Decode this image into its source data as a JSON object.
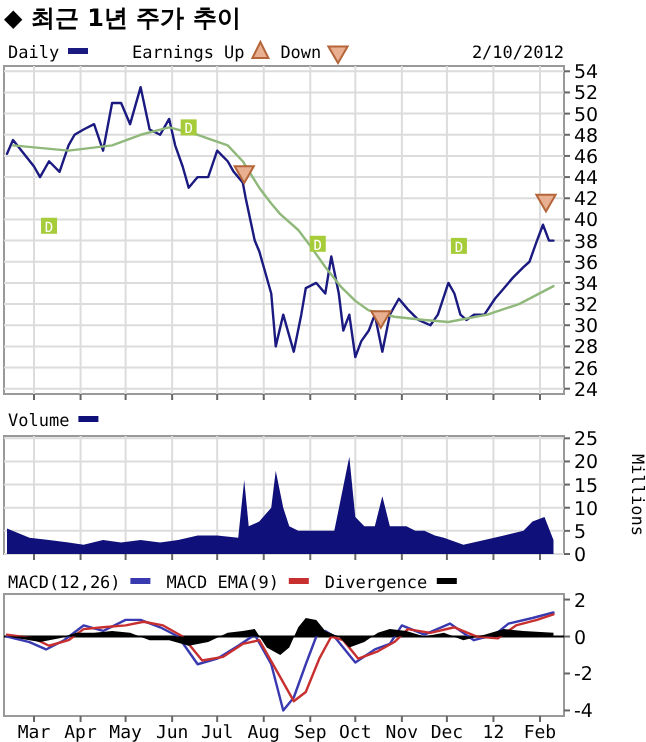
{
  "chart_data": [
    {
      "type": "line",
      "title": "◆ 최근 1년 주가 추이",
      "legend": "top left",
      "grid": true,
      "tick_labels": "y",
      "xticks": [
        {
          "value": "2011-03-01",
          "label": null
        },
        {
          "value": "2011-04-01",
          "label": null
        },
        {
          "value": "2011-05-01",
          "label": null
        },
        {
          "value": "2011-06-01",
          "label": null
        },
        {
          "value": "2011-07-01",
          "label": null
        },
        {
          "value": "2011-08-01",
          "label": null
        },
        {
          "value": "2011-09-01",
          "label": null
        },
        {
          "value": "2011-10-01",
          "label": null
        },
        {
          "value": "2011-11-01",
          "label": null
        },
        {
          "value": "2011-12-01",
          "label": null
        },
        {
          "value": "2012-01-01",
          "label": null
        },
        {
          "value": "2012-02-01",
          "label": null
        }
      ],
      "annotations": [
        "2/10/2012",
        "Earnings Up",
        {
          "text": "D",
          "x": "2011-03-11",
          "y": 39.4
        },
        {
          "text": "D",
          "x": "2011-06-12",
          "y": 48.7
        },
        {
          "text": "D",
          "x": "2011-09-06",
          "y": 37.7
        },
        {
          "text": "D",
          "x": "2011-12-09",
          "y": 37.5
        }
      ],
      "xlim": [
        "2011-02-09",
        "2012-02-17"
      ],
      "ylim": [
        23.5,
        54.5
      ],
      "yticks": [
        24,
        26,
        28,
        30,
        32,
        34,
        36,
        38,
        40,
        42,
        44,
        46,
        48,
        50,
        52,
        54
      ],
      "series": [
        {
          "name": "Daily",
          "color": "#1a1a80",
          "x": [
            "2011-02-11",
            "2011-02-15",
            "2011-03-01",
            "2011-03-05",
            "2011-03-11",
            "2011-03-18",
            "2011-03-24",
            "2011-03-28",
            "2011-04-03",
            "2011-04-10",
            "2011-04-16",
            "2011-04-22",
            "2011-04-28",
            "2011-05-04",
            "2011-05-11",
            "2011-05-17",
            "2011-05-24",
            "2011-05-30",
            "2011-06-03",
            "2011-06-08",
            "2011-06-12",
            "2011-06-18",
            "2011-06-25",
            "2011-07-01",
            "2011-07-08",
            "2011-07-12",
            "2011-07-18",
            "2011-07-20",
            "2011-07-26",
            "2011-07-29",
            "2011-08-06",
            "2011-08-09",
            "2011-08-14",
            "2011-08-18",
            "2011-08-21",
            "2011-08-26",
            "2011-08-29",
            "2011-09-05",
            "2011-09-11",
            "2011-09-15",
            "2011-09-20",
            "2011-09-23",
            "2011-09-27",
            "2011-10-01",
            "2011-10-05",
            "2011-10-10",
            "2011-10-14",
            "2011-10-19",
            "2011-10-24",
            "2011-10-30",
            "2011-11-05",
            "2011-11-12",
            "2011-11-20",
            "2011-11-25",
            "2011-12-02",
            "2011-12-06",
            "2011-12-10",
            "2011-12-14",
            "2011-12-19",
            "2011-12-26",
            "2012-01-02",
            "2012-01-08",
            "2012-01-14",
            "2012-01-21",
            "2012-01-25",
            "2012-01-30",
            "2012-02-03",
            "2012-02-07",
            "2012-02-10"
          ],
          "values": [
            46.2,
            47.5,
            45,
            44,
            45.5,
            44.5,
            47,
            48,
            48.5,
            49,
            46.5,
            51,
            51,
            49,
            52.5,
            48.5,
            48,
            49.5,
            47,
            45,
            43,
            44,
            44,
            46.5,
            45.5,
            44.5,
            43.5,
            42,
            38,
            37,
            33,
            28,
            31,
            29,
            27.5,
            31,
            33.5,
            34,
            33,
            36.5,
            33,
            29.5,
            31,
            27,
            28.5,
            29.5,
            31,
            27.5,
            31,
            32.5,
            31.5,
            30.5,
            30,
            31,
            34,
            33,
            31,
            30.5,
            31,
            31,
            32.5,
            33.5,
            34.5,
            35.5,
            36,
            38,
            39.5,
            38,
            38
          ]
        },
        {
          "color": "#8fb87a",
          "x": [
            "2011-02-15",
            "2011-03-24",
            "2011-04-22",
            "2011-05-11",
            "2011-05-30",
            "2011-06-18",
            "2011-07-08",
            "2011-07-18",
            "2011-07-29",
            "2011-08-06",
            "2011-08-12",
            "2011-08-24",
            "2011-09-01",
            "2011-09-11",
            "2011-09-21",
            "2011-10-01",
            "2011-10-10",
            "2011-10-27",
            "2011-11-16",
            "2011-12-02",
            "2011-12-28",
            "2012-01-18",
            "2012-02-10"
          ],
          "values": [
            47,
            46.5,
            47,
            48,
            48.7,
            48,
            47,
            45.5,
            43,
            41.5,
            40.5,
            39,
            37.5,
            35.5,
            33.7,
            32.3,
            31.4,
            30.8,
            30.5,
            30.3,
            31,
            32,
            33.7
          ]
        },
        {
          "name": "Down",
          "type": "scatter",
          "marker": "triangle",
          "color": "#b5653a",
          "x": [
            "2011-07-19",
            "2011-10-18",
            "2012-02-05"
          ],
          "values": [
            44.5,
            30.8,
            41.8
          ]
        }
      ]
    },
    {
      "type": "area",
      "legend": "top left",
      "grid": true,
      "tick_labels": "y",
      "ylabel": "Millions",
      "xlim": [
        "2011-02-09",
        "2012-02-17"
      ],
      "xticks": [
        {
          "value": "2011-03-01",
          "label": null
        },
        {
          "value": "2011-04-01",
          "label": null
        },
        {
          "value": "2011-05-01",
          "label": null
        },
        {
          "value": "2011-06-01",
          "label": null
        },
        {
          "value": "2011-07-01",
          "label": null
        },
        {
          "value": "2011-08-01",
          "label": null
        },
        {
          "value": "2011-09-01",
          "label": null
        },
        {
          "value": "2011-10-01",
          "label": null
        },
        {
          "value": "2011-11-01",
          "label": null
        },
        {
          "value": "2011-12-01",
          "label": null
        },
        {
          "value": "2012-01-01",
          "label": null
        },
        {
          "value": "2012-02-01",
          "label": null
        }
      ],
      "ylim": [
        0,
        25.5
      ],
      "yticks": [
        0,
        5,
        10,
        15,
        20,
        25
      ],
      "series": [
        {
          "name": "Volume",
          "color": "#10107a",
          "x": [
            "2011-02-11",
            "2011-02-26",
            "2011-03-11",
            "2011-03-24",
            "2011-04-03",
            "2011-04-16",
            "2011-04-28",
            "2011-05-11",
            "2011-05-24",
            "2011-06-05",
            "2011-06-18",
            "2011-07-01",
            "2011-07-15",
            "2011-07-19",
            "2011-07-22",
            "2011-07-29",
            "2011-08-06",
            "2011-08-09",
            "2011-08-14",
            "2011-08-18",
            "2011-08-24",
            "2011-09-05",
            "2011-09-17",
            "2011-09-27",
            "2011-10-01",
            "2011-10-07",
            "2011-10-14",
            "2011-10-19",
            "2011-10-24",
            "2011-11-04",
            "2011-11-10",
            "2011-11-16",
            "2011-11-23",
            "2011-11-29",
            "2011-12-12",
            "2011-12-26",
            "2012-01-08",
            "2012-01-21",
            "2012-01-27",
            "2012-02-04",
            "2012-02-10"
          ],
          "values": [
            5.5,
            3.5,
            3,
            2.5,
            2,
            3,
            2.5,
            3,
            2.5,
            3,
            4,
            4,
            3.5,
            16,
            6,
            7,
            10,
            18,
            10,
            6,
            5,
            5,
            5,
            21,
            8,
            6,
            6,
            12.5,
            6,
            6,
            5,
            5,
            4,
            3.5,
            2,
            3,
            4,
            5,
            7,
            8,
            3
          ]
        }
      ]
    },
    {
      "type": "line",
      "legend": "top left",
      "grid": false,
      "xlim": [
        "2011-02-09",
        "2012-02-17"
      ],
      "xticks": [
        {
          "value": "2011-03-01",
          "label": "Mar"
        },
        {
          "value": "2011-04-01",
          "label": "Apr"
        },
        {
          "value": "2011-05-01",
          "label": "May"
        },
        {
          "value": "2011-06-01",
          "label": "Jun"
        },
        {
          "value": "2011-07-01",
          "label": "Jul"
        },
        {
          "value": "2011-08-01",
          "label": "Aug"
        },
        {
          "value": "2011-09-01",
          "label": "Sep"
        },
        {
          "value": "2011-10-01",
          "label": "Oct"
        },
        {
          "value": "2011-11-01",
          "label": "Nov"
        },
        {
          "value": "2011-12-01",
          "label": "Dec"
        },
        {
          "value": "2012-01-01",
          "label": "12"
        },
        {
          "value": "2012-02-01",
          "label": "Feb"
        }
      ],
      "ylim": [
        -4.3,
        2.3
      ],
      "yticks": [
        -4,
        -2,
        0,
        2
      ],
      "ref_lines": [
        {
          "axis": "y",
          "value": 0,
          "color": "#000000"
        }
      ],
      "series": [
        {
          "name": "MACD(12,26)",
          "color": "#3a3ab0",
          "x": [
            "2011-02-11",
            "2011-02-26",
            "2011-03-09",
            "2011-03-21",
            "2011-04-03",
            "2011-04-16",
            "2011-05-01",
            "2011-05-11",
            "2011-05-24",
            "2011-06-05",
            "2011-06-18",
            "2011-07-01",
            "2011-07-15",
            "2011-07-26",
            "2011-08-06",
            "2011-08-14",
            "2011-08-21",
            "2011-08-29",
            "2011-09-05",
            "2011-09-11",
            "2011-09-17",
            "2011-10-01",
            "2011-10-14",
            "2011-10-24",
            "2011-11-01",
            "2011-11-16",
            "2011-12-03",
            "2011-12-19",
            "2012-01-02",
            "2012-01-11",
            "2012-01-27",
            "2012-02-10"
          ],
          "values": [
            0,
            -0.3,
            -0.7,
            -0.2,
            0.6,
            0.3,
            0.9,
            0.9,
            0.5,
            0,
            -1.5,
            -1.2,
            -0.5,
            0.1,
            -1.5,
            -4,
            -3.3,
            -1.5,
            0,
            0.3,
            0,
            -1.4,
            -0.7,
            -0.4,
            0.6,
            0.1,
            0.7,
            -0.2,
            0.1,
            0.7,
            1,
            1.3
          ]
        },
        {
          "name": "MACD EMA(9)",
          "color": "#c83030",
          "x": [
            "2011-02-11",
            "2011-03-01",
            "2011-03-11",
            "2011-03-24",
            "2011-04-03",
            "2011-04-16",
            "2011-05-01",
            "2011-05-13",
            "2011-05-26",
            "2011-06-08",
            "2011-06-21",
            "2011-07-05",
            "2011-07-18",
            "2011-07-29",
            "2011-08-12",
            "2011-08-21",
            "2011-08-29",
            "2011-09-07",
            "2011-09-15",
            "2011-09-23",
            "2011-10-03",
            "2011-10-16",
            "2011-10-27",
            "2011-11-05",
            "2011-11-20",
            "2011-12-06",
            "2011-12-21",
            "2012-01-04",
            "2012-01-16",
            "2012-01-30",
            "2012-02-10"
          ],
          "values": [
            0.1,
            -0.1,
            -0.5,
            -0.2,
            0.4,
            0.5,
            0.6,
            0.8,
            0.6,
            0,
            -1.3,
            -1.1,
            -0.4,
            -0.2,
            -2.2,
            -3.5,
            -3,
            -1.2,
            0,
            -0.2,
            -1.2,
            -0.8,
            -0.3,
            0.4,
            0.2,
            0.5,
            0,
            -0.1,
            0.6,
            0.9,
            1.2
          ]
        },
        {
          "name": "Divergence",
          "type": "area",
          "color": "#000000",
          "x": [
            "2011-02-11",
            "2011-03-05",
            "2011-03-18",
            "2011-03-29",
            "2011-04-10",
            "2011-04-22",
            "2011-05-04",
            "2011-05-17",
            "2011-05-30",
            "2011-06-12",
            "2011-06-25",
            "2011-07-08",
            "2011-07-18",
            "2011-07-26",
            "2011-08-03",
            "2011-08-12",
            "2011-08-18",
            "2011-08-24",
            "2011-08-29",
            "2011-09-05",
            "2011-09-11",
            "2011-09-20",
            "2011-09-27",
            "2011-10-07",
            "2011-10-16",
            "2011-10-24",
            "2011-11-04",
            "2011-11-16",
            "2011-11-29",
            "2011-12-12",
            "2011-12-26",
            "2012-01-08",
            "2012-01-21",
            "2012-02-10"
          ],
          "values": [
            0,
            -0.3,
            -0.1,
            0.2,
            0.2,
            0.3,
            0.2,
            -0.2,
            -0.2,
            -0.5,
            -0.3,
            0.2,
            0.3,
            0.4,
            -0.6,
            -1,
            -0.6,
            0.5,
            1,
            0.9,
            0.3,
            0,
            -0.6,
            -0.3,
            0.2,
            0.4,
            0.3,
            0,
            0.2,
            -0.2,
            0.1,
            0.4,
            0.3,
            0.2
          ]
        }
      ]
    }
  ]
}
